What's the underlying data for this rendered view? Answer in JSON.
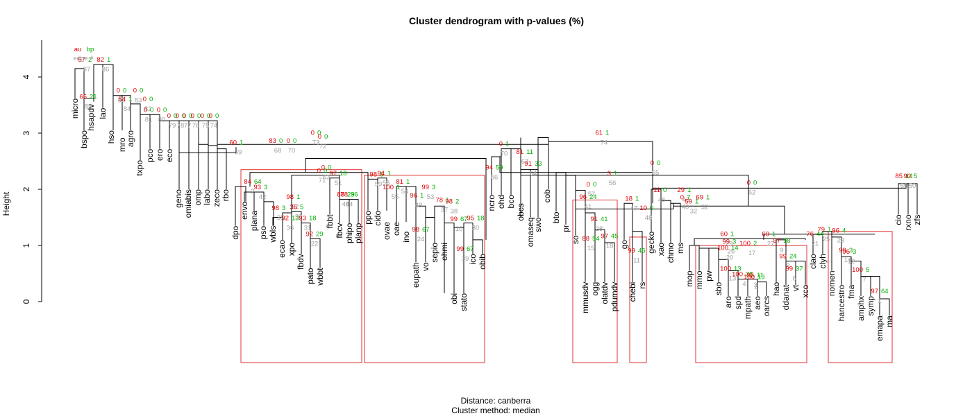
{
  "chart_data": {
    "type": "dendrogram",
    "title": "Cluster dendrogram with p-values (%)",
    "ylabel": "Height",
    "ylim": [
      0,
      4.6
    ],
    "yticks": [
      "0",
      "1",
      "2",
      "3",
      "4"
    ],
    "caption": [
      "Distance:  canberra",
      "Cluster method: median"
    ],
    "legend_labels": {
      "au": "au",
      "bp": "bp",
      "edge": "edge #"
    },
    "colors": {
      "au": "#e00000",
      "bp": "#00b000",
      "edge": "#a0a0a0",
      "box": "#e03030",
      "line": "#000000"
    },
    "leaves": [
      "micro",
      "bspo",
      "hsapdv",
      "lao",
      "hso",
      "mro",
      "agro",
      "txpo",
      "pco",
      "ero",
      "eco",
      "geno",
      "omiabis",
      "omp",
      "labo",
      "zeco",
      "rbo",
      "dpo",
      "envo",
      "plana",
      "pso",
      "wbls",
      "ecao",
      "xpo",
      "fbdv",
      "pato",
      "wbbt",
      "fbbt",
      "fbcv",
      "phipo",
      "planp",
      "ppo",
      "cido",
      "ovae",
      "oae",
      "ino",
      "eupath",
      "vo",
      "sepio",
      "ohmi",
      "obi",
      "stato",
      "ico",
      "obib",
      "ncro",
      "ohd",
      "bco",
      "obcs",
      "omaseq",
      "swo",
      "cob",
      "bto",
      "pr",
      "so",
      "mmusdv",
      "ogg",
      "olatdv",
      "pdumdv",
      "go",
      "chebi",
      "rs",
      "gecko",
      "xao",
      "chmo",
      "ms",
      "mop",
      "mmo",
      "pw",
      "sbo",
      "aro",
      "spd",
      "mpath",
      "aeo",
      "oarcs",
      "hao",
      "ddanat",
      "vt",
      "xco",
      "clao",
      "clyh",
      "nomen",
      "hancestro",
      "fma",
      "amphx",
      "symp",
      "emapa",
      "ma",
      "cio",
      "rxno",
      "zfs"
    ],
    "highlighted_clusters": [
      [
        "dpo",
        "planp"
      ],
      [
        "ppo",
        "obib"
      ],
      [
        "so",
        "pdumdv"
      ],
      [
        "chebi",
        "rs"
      ],
      [
        "mop",
        "xco"
      ],
      [
        "nomen",
        "ma"
      ]
    ],
    "nodes": [
      {
        "au": 57,
        "bp": 2,
        "edge": 87
      },
      {
        "au": 65,
        "bp": 21,
        "edge": 85
      },
      {
        "au": 82,
        "bp": 1,
        "edge": 86
      },
      {
        "au": 0,
        "bp": 0,
        "edge": 85
      },
      {
        "au": 54,
        "bp": 1,
        "edge": 84
      },
      {
        "au": 0,
        "bp": 0,
        "edge": 83
      },
      {
        "au": 0,
        "bp": 0,
        "edge": 82
      },
      {
        "au": 0,
        "bp": 0,
        "edge": 81
      },
      {
        "au": 0,
        "bp": 0,
        "edge": 80
      },
      {
        "au": 0,
        "bp": 0,
        "edge": 79
      },
      {
        "au": 0,
        "bp": 0,
        "edge": 78
      },
      {
        "au": 0,
        "bp": 0,
        "edge": 77
      },
      {
        "au": 0,
        "bp": 0,
        "edge": 76
      },
      {
        "au": 0,
        "bp": 0,
        "edge": 75
      },
      {
        "au": 0,
        "bp": 0,
        "edge": 74
      },
      {
        "au": 60,
        "bp": 1,
        "edge": 69
      },
      {
        "au": 83,
        "bp": 0,
        "edge": 68
      },
      {
        "au": 0,
        "bp": 0,
        "edge": 70
      },
      {
        "au": 0,
        "bp": 0,
        "edge": 73
      },
      {
        "au": 61,
        "bp": 1,
        "edge": 74
      },
      {
        "au": 0,
        "bp": 0,
        "edge": 72
      },
      {
        "au": 0,
        "bp": 0,
        "edge": 71
      },
      {
        "au": 0,
        "bp": 0,
        "edge": 63
      },
      {
        "au": 97,
        "bp": 18,
        "edge": 51
      },
      {
        "au": 84,
        "bp": 64,
        "edge": 2
      },
      {
        "au": 93,
        "bp": 3,
        "edge": 42
      },
      {
        "au": 98,
        "bp": 1,
        "edge": 52
      },
      {
        "au": 98,
        "bp": 3,
        "edge": 35
      },
      {
        "au": 36,
        "bp": 5,
        "edge": 33
      },
      {
        "au": 92,
        "bp": 13,
        "edge": 36
      },
      {
        "au": 93,
        "bp": 18,
        "edge": 31
      },
      {
        "au": 92,
        "bp": 29,
        "edge": 22
      },
      {
        "au": 78,
        "bp": 36,
        "edge": 44
      },
      {
        "au": 88,
        "bp": 29,
        "edge": 45
      },
      {
        "au": 98,
        "bp": 5,
        "edge": 59
      },
      {
        "au": 94,
        "bp": 1,
        "edge": 58
      },
      {
        "au": 81,
        "bp": 1,
        "edge": 54
      },
      {
        "au": 100,
        "bp": 1,
        "edge": 55
      },
      {
        "au": 96,
        "bp": 1,
        "edge": 49
      },
      {
        "au": 99,
        "bp": 3,
        "edge": 53
      },
      {
        "au": 98,
        "bp": 67,
        "edge": 24
      },
      {
        "au": 78,
        "bp": 1,
        "edge": 37
      },
      {
        "au": 98,
        "bp": 2,
        "edge": 38
      },
      {
        "au": 99,
        "bp": 67,
        "edge": 10
      },
      {
        "au": 95,
        "bp": 18,
        "edge": 30
      },
      {
        "au": 99,
        "bp": 67,
        "edge": 39
      },
      {
        "au": 0,
        "bp": 1,
        "edge": 70
      },
      {
        "au": 81,
        "bp": 11,
        "edge": 67
      },
      {
        "au": 94,
        "bp": 59,
        "edge": 66
      },
      {
        "au": 91,
        "bp": 33,
        "edge": 64
      },
      {
        "au": 0,
        "bp": 0,
        "edge": 65
      },
      {
        "au": 0,
        "bp": 0,
        "edge": 62
      },
      {
        "au": 3,
        "bp": 1,
        "edge": 56
      },
      {
        "au": 0,
        "bp": 0,
        "edge": 57
      },
      {
        "au": 96,
        "bp": 24,
        "edge": 41
      },
      {
        "au": 91,
        "bp": 41,
        "edge": 28
      },
      {
        "au": 88,
        "bp": 54,
        "edge": 15
      },
      {
        "au": 97,
        "bp": 45,
        "edge": 18
      },
      {
        "au": 18,
        "bp": 1,
        "edge": 47
      },
      {
        "au": 10,
        "bp": 0,
        "edge": 48
      },
      {
        "au": 99,
        "bp": 46,
        "edge": 11
      },
      {
        "au": 11,
        "bp": 0,
        "edge": 46
      },
      {
        "au": 29,
        "bp": 1,
        "edge": 43
      },
      {
        "au": 0,
        "bp": 7,
        "edge": 40
      },
      {
        "au": 69,
        "bp": 1,
        "edge": 32
      },
      {
        "au": 59,
        "bp": 1,
        "edge": 32
      },
      {
        "au": 60,
        "bp": 1,
        "edge": 29
      },
      {
        "au": 99,
        "bp": 3,
        "edge": 26
      },
      {
        "au": 100,
        "bp": 14,
        "edge": 20
      },
      {
        "au": 100,
        "bp": 2,
        "edge": 17
      },
      {
        "au": 100,
        "bp": 13,
        "edge": 13
      },
      {
        "au": 100,
        "bp": 35,
        "edge": 4
      },
      {
        "au": 95,
        "bp": 11,
        "edge": 3
      },
      {
        "au": 100,
        "bp": 19,
        "edge": 2
      },
      {
        "au": 69,
        "bp": 1,
        "edge": 27
      },
      {
        "au": 97,
        "bp": 18,
        "edge": 9
      },
      {
        "au": 99,
        "bp": 24,
        "edge": 8
      },
      {
        "au": 99,
        "bp": 37,
        "edge": 6
      },
      {
        "au": 76,
        "bp": 44,
        "edge": 21
      },
      {
        "au": 79,
        "bp": 1,
        "edge": 25
      },
      {
        "au": 96,
        "bp": 4,
        "edge": 23
      },
      {
        "au": 99,
        "bp": 3,
        "edge": 14
      },
      {
        "au": 96,
        "bp": 3,
        "edge": 12
      },
      {
        "au": 100,
        "bp": 5,
        "edge": 7
      },
      {
        "au": 97,
        "bp": 64,
        "edge": 1
      },
      {
        "au": 85,
        "bp": 14,
        "edge": 60
      },
      {
        "au": 90,
        "bp": 5,
        "edge": 50
      }
    ]
  }
}
